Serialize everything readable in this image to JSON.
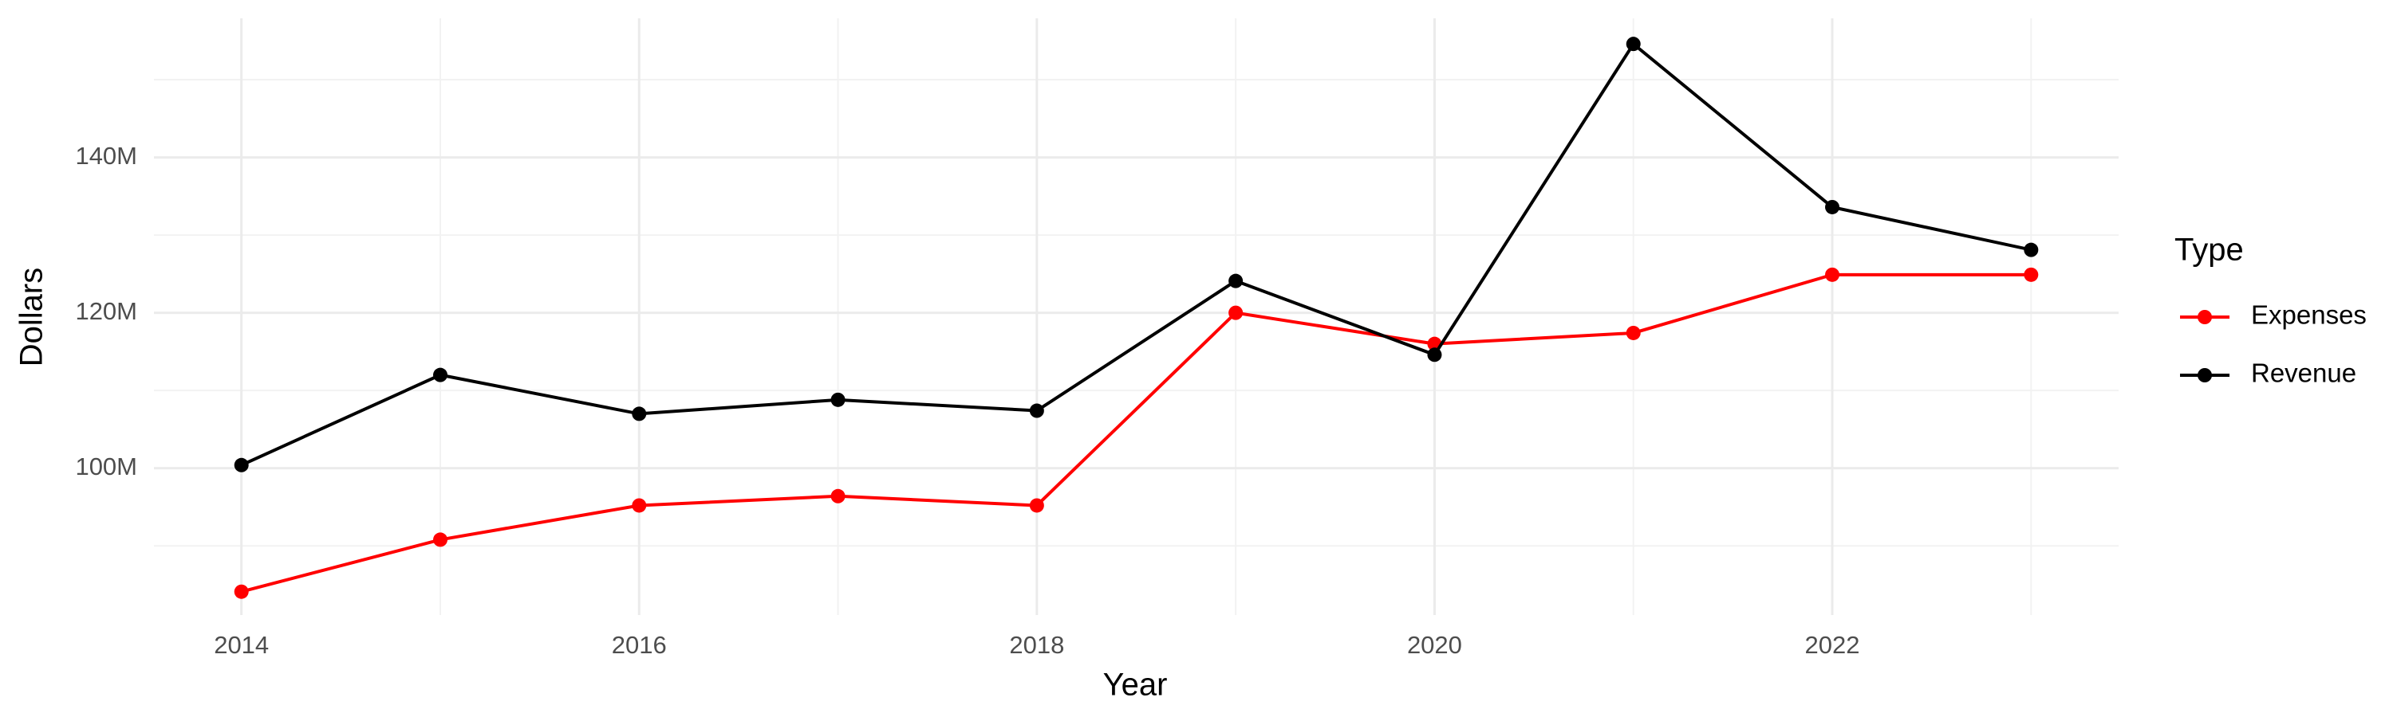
{
  "chart_data": {
    "type": "line",
    "x_label": "Year",
    "y_label": "Dollars",
    "legend_title": "Type",
    "x": [
      2014,
      2015,
      2016,
      2017,
      2018,
      2019,
      2020,
      2021,
      2022,
      2023
    ],
    "series": [
      {
        "name": "Expenses",
        "color": "#ff0000",
        "values": [
          84100000,
          90800000,
          95200000,
          96400000,
          95200000,
          120000000,
          116000000,
          117400000,
          124900000,
          124900000
        ]
      },
      {
        "name": "Revenue",
        "color": "#000000",
        "values": [
          100400000,
          112000000,
          107000000,
          108800000,
          107400000,
          124100000,
          114600000,
          154600000,
          133600000,
          128100000
        ]
      }
    ],
    "xlim": [
      2013.56,
      2023.44
    ],
    "ylim": [
      81100000,
      157900000
    ],
    "xticks": [
      2014,
      2016,
      2018,
      2020,
      2022
    ],
    "yticks": [
      {
        "value": 100000000,
        "label": "100M"
      },
      {
        "value": 120000000,
        "label": "120M"
      },
      {
        "value": 140000000,
        "label": "140M"
      }
    ],
    "x_minor_grid": [
      2015,
      2017,
      2019,
      2021,
      2023
    ],
    "y_minor_grid": [
      90000000,
      110000000,
      130000000,
      150000000
    ],
    "grid": true,
    "legend": "right"
  }
}
